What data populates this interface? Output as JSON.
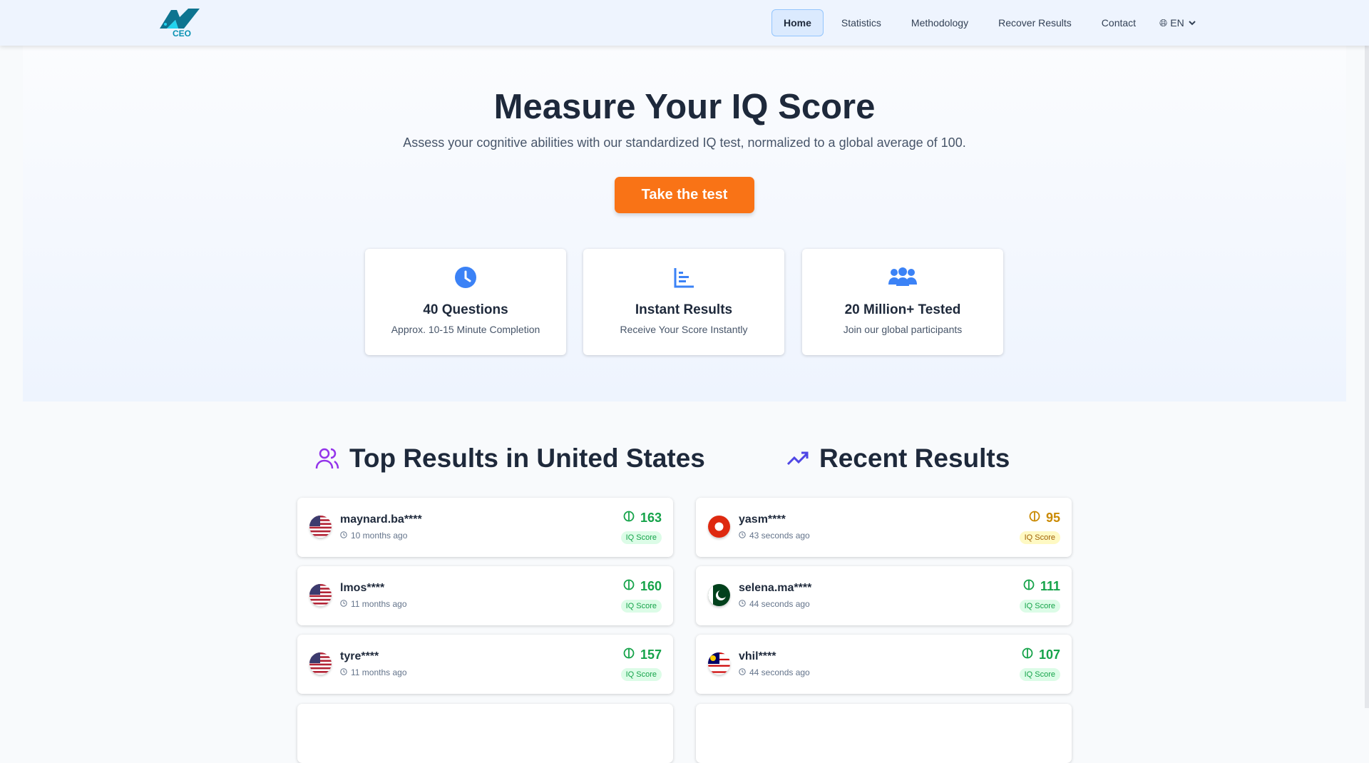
{
  "nav": {
    "logo_text": "CEO",
    "items": [
      "Home",
      "Statistics",
      "Methodology",
      "Recover Results",
      "Contact"
    ],
    "active": "Home",
    "language": "EN"
  },
  "hero": {
    "title": "Measure Your IQ Score",
    "subtitle": "Assess your cognitive abilities with our standardized IQ test, normalized to a global average of 100.",
    "cta": "Take the test"
  },
  "features": [
    {
      "icon": "clock-icon",
      "title": "40 Questions",
      "desc": "Approx. 10-15 Minute Completion"
    },
    {
      "icon": "bar-chart-icon",
      "title": "Instant Results",
      "desc": "Receive Your Score Instantly"
    },
    {
      "icon": "users-icon",
      "title": "20 Million+ Tested",
      "desc": "Join our global participants"
    }
  ],
  "top_results": {
    "title": "Top Results in United States",
    "items": [
      {
        "flag": "us",
        "name": "maynard.ba****",
        "time": "10 months ago",
        "score": "163",
        "label": "IQ Score"
      },
      {
        "flag": "us",
        "name": "lmos****",
        "time": "11 months ago",
        "score": "160",
        "label": "IQ Score"
      },
      {
        "flag": "us",
        "name": "tyre****",
        "time": "11 months ago",
        "score": "157",
        "label": "IQ Score"
      }
    ]
  },
  "recent_results": {
    "title": "Recent Results",
    "items": [
      {
        "flag": "hk",
        "name": "yasm****",
        "time": "43 seconds ago",
        "score": "95",
        "label": "IQ Score",
        "color": "yellow"
      },
      {
        "flag": "pk",
        "name": "selena.ma****",
        "time": "44 seconds ago",
        "score": "111",
        "label": "IQ Score",
        "color": "green"
      },
      {
        "flag": "my",
        "name": "vhil****",
        "time": "44 seconds ago",
        "score": "107",
        "label": "IQ Score",
        "color": "green"
      }
    ]
  },
  "colors": {
    "accent": "#f97316",
    "icon_blue": "#3b82f6",
    "green": "#16a34a",
    "yellow": "#ca8a04",
    "purple": "#9333ea",
    "indigo": "#4f46e5"
  }
}
